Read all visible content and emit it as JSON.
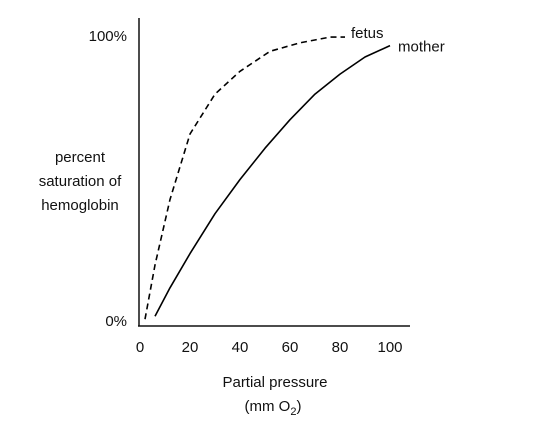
{
  "chart_data": {
    "type": "line",
    "y_label": [
      "percent",
      "saturation of",
      "hemoglobin"
    ],
    "x_label": {
      "line1": "Partial pressure",
      "line2_start": "(mm O",
      "subscript": "2",
      "line2_end": ")"
    },
    "xlim": [
      0,
      108
    ],
    "xticks": [
      0,
      20,
      40,
      60,
      80,
      100
    ],
    "ylim": [
      0,
      106
    ],
    "yticks": [
      {
        "value": 0,
        "label": "0%"
      },
      {
        "value": 100,
        "label": "100%"
      }
    ],
    "series": [
      {
        "name": "fetus",
        "color": "#000000",
        "dashed": true,
        "x": [
          2,
          6,
          12,
          20,
          30,
          40,
          52,
          64,
          76,
          82
        ],
        "values": [
          1,
          20,
          43,
          66,
          80,
          88,
          95,
          98,
          100,
          100
        ]
      },
      {
        "name": "mother",
        "color": "#000000",
        "dashed": false,
        "x": [
          6,
          12,
          20,
          30,
          40,
          50,
          60,
          70,
          80,
          90,
          100
        ],
        "values": [
          2,
          12,
          24,
          38,
          50,
          61,
          71,
          80,
          87,
          93,
          97
        ]
      }
    ]
  }
}
